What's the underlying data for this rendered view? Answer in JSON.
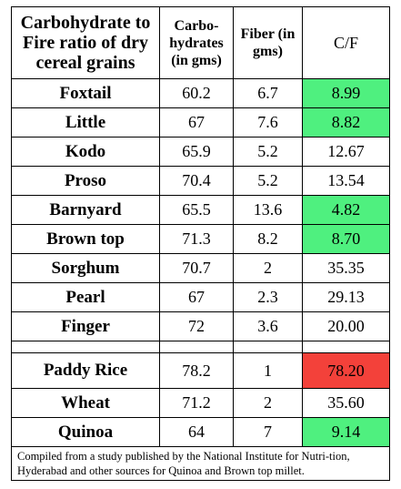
{
  "table": {
    "headers": {
      "title": "Carbohydrate to Fire ratio of dry cereal grains",
      "carbs": "Carbo-hydrates (in gms)",
      "fiber": "Fiber (in gms)",
      "cf": "C/F"
    },
    "rows": [
      {
        "name": "Foxtail",
        "carbs": "60.2",
        "fiber": "6.7",
        "cf": "8.99",
        "highlight": "green"
      },
      {
        "name": "Little",
        "carbs": "67",
        "fiber": "7.6",
        "cf": "8.82",
        "highlight": "green"
      },
      {
        "name": "Kodo",
        "carbs": "65.9",
        "fiber": "5.2",
        "cf": "12.67",
        "highlight": "none"
      },
      {
        "name": "Proso",
        "carbs": "70.4",
        "fiber": "5.2",
        "cf": "13.54",
        "highlight": "none"
      },
      {
        "name": "Barnyard",
        "carbs": "65.5",
        "fiber": "13.6",
        "cf": "4.82",
        "highlight": "green"
      },
      {
        "name": "Brown top",
        "carbs": "71.3",
        "fiber": "8.2",
        "cf": "8.70",
        "highlight": "green"
      },
      {
        "name": "Sorghum",
        "carbs": "70.7",
        "fiber": "2",
        "cf": "35.35",
        "highlight": "none"
      },
      {
        "name": "Pearl",
        "carbs": "67",
        "fiber": "2.3",
        "cf": "29.13",
        "highlight": "none"
      },
      {
        "name": "Finger",
        "carbs": "72",
        "fiber": "3.6",
        "cf": "20.00",
        "highlight": "none"
      }
    ],
    "rows2": [
      {
        "name": "Paddy Rice",
        "carbs": "78.2",
        "fiber": "1",
        "cf": "78.20",
        "highlight": "red"
      },
      {
        "name": "Wheat",
        "carbs": "71.2",
        "fiber": "2",
        "cf": "35.60",
        "highlight": "none"
      },
      {
        "name": "Quinoa",
        "carbs": "64",
        "fiber": "7",
        "cf": "9.14",
        "highlight": "green"
      }
    ],
    "footnote": "Compiled from a study published by the National Institute for Nutri-tion, Hyderabad and other sources for Quinoa and Brown top millet."
  },
  "colors": {
    "green": "#4ff07f",
    "red": "#f3413a"
  }
}
